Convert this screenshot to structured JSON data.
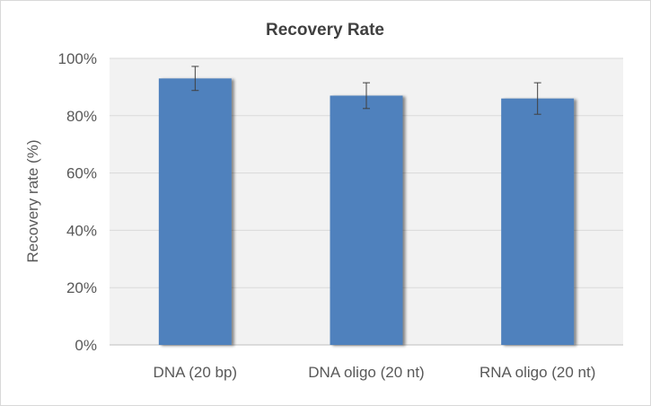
{
  "chart_data": {
    "type": "bar",
    "title": "Recovery Rate",
    "xlabel": "",
    "ylabel": "Recovery rate (%)",
    "categories": [
      "DNA (20 bp)",
      "DNA oligo (20 nt)",
      "RNA oligo (20 nt)"
    ],
    "series": [
      {
        "values": [
          93,
          87,
          86
        ],
        "error": [
          4.2,
          4.5,
          5.5
        ]
      }
    ],
    "ylim": [
      0,
      100
    ],
    "yticks": [
      0,
      20,
      40,
      60,
      80,
      100
    ],
    "ytick_labels": [
      "0%",
      "20%",
      "40%",
      "60%",
      "80%",
      "100%"
    ],
    "grid": true,
    "legend": "none",
    "colors": {
      "bar": "#4f81bd",
      "plot_background": "#f2f2f2",
      "gridline": "#d9d9d9"
    }
  }
}
